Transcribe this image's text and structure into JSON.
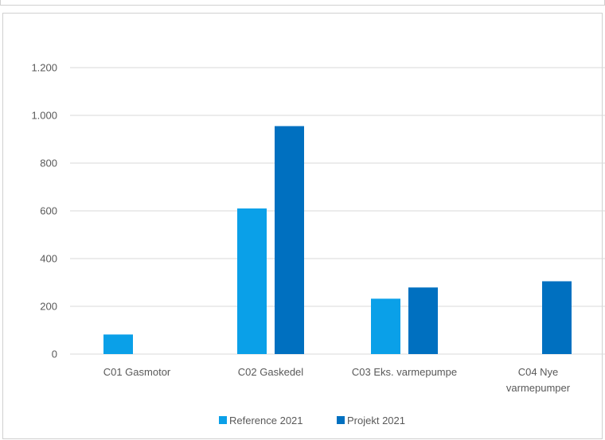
{
  "chart_data": {
    "type": "bar",
    "title": "",
    "xlabel": "",
    "ylabel": "",
    "categories": [
      [
        "C01 Gasmotor"
      ],
      [
        "C02 Gaskedel"
      ],
      [
        "C03 Eks. varmepumpe"
      ],
      [
        "C04 Nye",
        "varmepumper"
      ]
    ],
    "series": [
      {
        "name": "Reference 2021",
        "color": "#0AA0E8",
        "values": [
          82,
          610,
          232,
          null
        ]
      },
      {
        "name": "Projekt 2021",
        "color": "#0070C0",
        "values": [
          null,
          955,
          279,
          305
        ]
      }
    ],
    "ylim": [
      0,
      1200
    ],
    "yticks": [
      {
        "value": 0,
        "label": "0"
      },
      {
        "value": 200,
        "label": "200"
      },
      {
        "value": 400,
        "label": "400"
      },
      {
        "value": 600,
        "label": "600"
      },
      {
        "value": 800,
        "label": "800"
      },
      {
        "value": 1000,
        "label": "1.000"
      },
      {
        "value": 1200,
        "label": "1.200"
      }
    ],
    "grid": true,
    "legend_position": "bottom"
  }
}
